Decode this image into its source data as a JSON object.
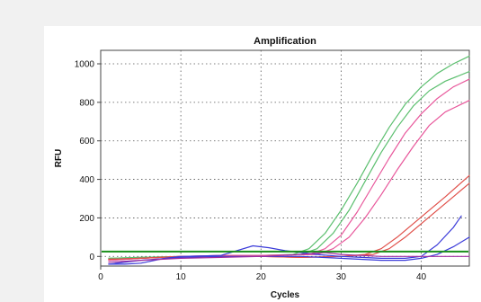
{
  "chart_data": {
    "type": "line",
    "title": "Amplification",
    "xlabel": "Cycles",
    "ylabel": "RFU",
    "xlim": [
      0,
      46
    ],
    "ylim": [
      -50,
      1070
    ],
    "x_ticks": [
      0,
      10,
      20,
      30,
      40
    ],
    "y_ticks": [
      0,
      200,
      400,
      600,
      800,
      1000
    ],
    "grid": true,
    "grid_style": "dotted",
    "threshold": {
      "value": 25,
      "color": "#1a8f1a"
    },
    "series": [
      {
        "color": "#5cbf6f",
        "x": [
          1,
          5,
          10,
          15,
          20,
          24,
          26,
          28,
          30,
          32,
          34,
          36,
          38,
          40,
          42,
          44,
          46
        ],
        "y": [
          -10,
          -5,
          0,
          0,
          5,
          10,
          40,
          120,
          240,
          380,
          530,
          670,
          790,
          880,
          950,
          1000,
          1040
        ]
      },
      {
        "color": "#5cbf6f",
        "x": [
          1,
          5,
          10,
          15,
          20,
          25,
          27,
          29,
          31,
          33,
          35,
          37,
          39,
          41,
          43,
          46
        ],
        "y": [
          -10,
          -5,
          0,
          0,
          5,
          10,
          40,
          120,
          240,
          390,
          540,
          670,
          780,
          860,
          910,
          960
        ]
      },
      {
        "color": "#e8579b",
        "x": [
          1,
          5,
          10,
          15,
          20,
          26,
          28,
          30,
          32,
          34,
          36,
          38,
          40,
          42,
          44,
          46
        ],
        "y": [
          -20,
          -10,
          0,
          5,
          5,
          10,
          40,
          110,
          230,
          370,
          510,
          640,
          740,
          820,
          880,
          920
        ]
      },
      {
        "color": "#e8579b",
        "x": [
          1,
          5,
          10,
          15,
          20,
          27,
          29,
          31,
          33,
          35,
          37,
          39,
          41,
          43,
          46
        ],
        "y": [
          -20,
          -10,
          0,
          5,
          5,
          10,
          40,
          100,
          200,
          320,
          450,
          570,
          680,
          750,
          810
        ]
      },
      {
        "color": "#e0504a",
        "x": [
          1,
          5,
          10,
          15,
          20,
          25,
          30,
          33,
          35,
          37,
          39,
          41,
          43,
          46
        ],
        "y": [
          -15,
          -10,
          0,
          0,
          0,
          -5,
          0,
          10,
          40,
          100,
          170,
          240,
          310,
          420
        ]
      },
      {
        "color": "#e0504a",
        "x": [
          1,
          5,
          10,
          15,
          20,
          25,
          30,
          34,
          36,
          38,
          40,
          42,
          44,
          46
        ],
        "y": [
          -15,
          -10,
          0,
          0,
          0,
          -5,
          0,
          10,
          40,
          100,
          170,
          240,
          310,
          380
        ]
      },
      {
        "color": "#3b3bd9",
        "x": [
          1,
          3,
          5,
          8,
          10,
          15,
          19,
          21,
          23,
          25,
          27,
          30,
          35,
          38,
          40,
          42,
          44,
          45
        ],
        "y": [
          -40,
          -40,
          -35,
          -10,
          0,
          5,
          55,
          45,
          30,
          20,
          10,
          0,
          -10,
          -10,
          0,
          60,
          150,
          210
        ]
      },
      {
        "color": "#3b3bd9",
        "x": [
          1,
          5,
          10,
          15,
          20,
          25,
          30,
          35,
          38,
          40,
          42,
          44,
          46
        ],
        "y": [
          -40,
          -20,
          -5,
          0,
          0,
          0,
          -10,
          -20,
          -20,
          -10,
          10,
          50,
          100
        ]
      },
      {
        "color": "#a02ea0",
        "x": [
          1,
          5,
          10,
          15,
          20,
          25,
          28,
          30,
          35,
          40,
          46
        ],
        "y": [
          -30,
          -20,
          -10,
          -5,
          0,
          10,
          20,
          10,
          0,
          0,
          0
        ]
      }
    ]
  }
}
